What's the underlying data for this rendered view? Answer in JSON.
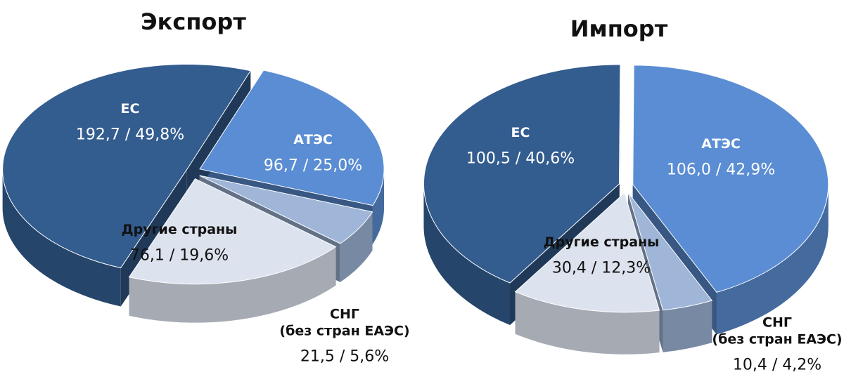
{
  "chart_data": [
    {
      "type": "pie",
      "title": "Экспорт",
      "categories": [
        "ЕС",
        "АТЭС",
        "СНГ\n(без стран ЕАЭС)",
        "Другие страны"
      ],
      "values": [
        192.7,
        96.7,
        21.5,
        76.1
      ],
      "value_labels": [
        "192,7 / 49,8%",
        "96,7 / 25,0%",
        "21,5 / 5,6%",
        "76,1 / 19,6%"
      ],
      "colors": [
        "#335c8f",
        "#5a8dd3",
        "#9fb6d9",
        "#dde3ee"
      ]
    },
    {
      "type": "pie",
      "title": "Импорт",
      "categories": [
        "ЕС",
        "АТЭС",
        "СНГ\n(без стран ЕАЭС)",
        "Другие страны"
      ],
      "values": [
        100.5,
        106.0,
        10.4,
        30.4
      ],
      "value_labels": [
        "100,5 / 40,6%",
        "106,0 / 42,9%",
        "10,4 / 4,2%",
        "30,4 / 12,3%"
      ],
      "colors": [
        "#335c8f",
        "#5a8dd3",
        "#9fb6d9",
        "#dde3ee"
      ]
    }
  ]
}
